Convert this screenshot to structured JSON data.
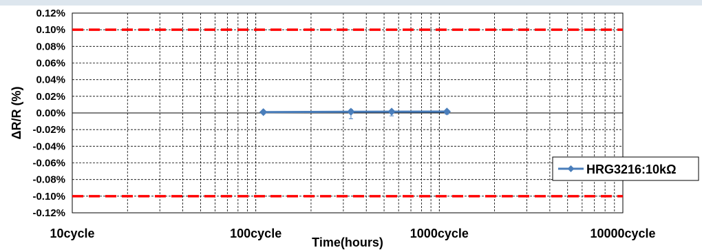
{
  "chart_data": {
    "type": "line",
    "xscale": "log",
    "xlim": [
      10,
      10000
    ],
    "ylim": [
      -0.12,
      0.12
    ],
    "ymajor": 0.02,
    "grid": true,
    "legend_position": "right",
    "x_tick_labels": [
      {
        "x": 10,
        "label": "10cycle"
      },
      {
        "x": 100,
        "label": "100cycle"
      },
      {
        "x": 1000,
        "label": "1000cycle"
      },
      {
        "x": 10000,
        "label": "10000cycle"
      }
    ],
    "y_tick_labels": [
      "0.12%",
      "0.10%",
      "0.08%",
      "0.06%",
      "0.04%",
      "0.02%",
      "0.00%",
      "-0.02%",
      "-0.04%",
      "-0.06%",
      "-0.08%",
      "-0.10%",
      "-0.12%"
    ],
    "xlabel": "Time(hours)",
    "ylabel": "ΔR/R (%)",
    "limits": [
      {
        "y": 0.1,
        "color": "#ff0000",
        "style": "dashed"
      },
      {
        "y": -0.1,
        "color": "#ff0000",
        "style": "dashed"
      }
    ],
    "series": [
      {
        "name": "HRG3216:10kΩ",
        "color": "#4a7ebb",
        "x": [
          110,
          330,
          550,
          1100
        ],
        "y": [
          0.001,
          0.0015,
          0.0016,
          0.0017
        ],
        "y_max": [
          0.0025,
          0.004,
          0.0035,
          0.003
        ],
        "y_min": [
          -0.001,
          -0.007,
          -0.0035,
          -0.0015
        ]
      }
    ]
  }
}
